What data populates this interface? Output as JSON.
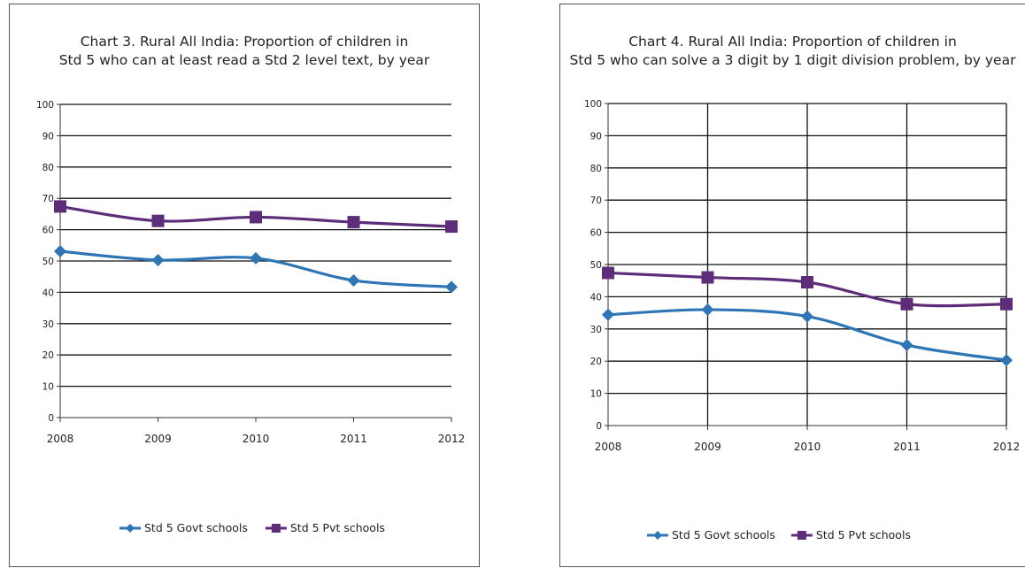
{
  "chart_data": [
    {
      "type": "line",
      "title_lines": [
        "Chart 3. Rural All India: Proportion of children in",
        "Std 5 who can at least read a Std 2 level text, by year"
      ],
      "x": [
        "2008",
        "2009",
        "2010",
        "2011",
        "2012"
      ],
      "ylim": [
        0,
        100
      ],
      "yticks": [
        "0",
        "10",
        "20",
        "30",
        "40",
        "50",
        "60",
        "70",
        "80",
        "90",
        "100"
      ],
      "grid": "horizontal",
      "legend": "bottom",
      "series": [
        {
          "name": "Std 5 Govt schools",
          "values": [
            53.1,
            50.3,
            50.9,
            43.8,
            41.7
          ],
          "color": "#2e75b6",
          "marker": "diamond"
        },
        {
          "name": "Std 5 Pvt schools",
          "values": [
            67.4,
            62.8,
            64.0,
            62.4,
            61.0
          ],
          "color": "#5e2d79",
          "marker": "square"
        }
      ]
    },
    {
      "type": "line",
      "title_lines": [
        "Chart 4. Rural All India: Proportion of children in",
        "Std 5 who can solve a 3 digit by 1 digit division problem, by year"
      ],
      "x": [
        "2008",
        "2009",
        "2010",
        "2011",
        "2012"
      ],
      "ylim": [
        0,
        100
      ],
      "yticks": [
        "0",
        "10",
        "20",
        "30",
        "40",
        "50",
        "60",
        "70",
        "80",
        "90",
        "100"
      ],
      "grid": "horizontal and vertical",
      "legend": "bottom",
      "series": [
        {
          "name": "Std 5 Govt schools",
          "values": [
            34.4,
            36.0,
            33.9,
            25.0,
            20.3
          ],
          "color": "#2e75b6",
          "marker": "diamond"
        },
        {
          "name": "Std 5 Pvt schools",
          "values": [
            47.4,
            46.0,
            44.5,
            37.7,
            37.7
          ],
          "color": "#5e2d79",
          "marker": "square"
        }
      ]
    }
  ]
}
